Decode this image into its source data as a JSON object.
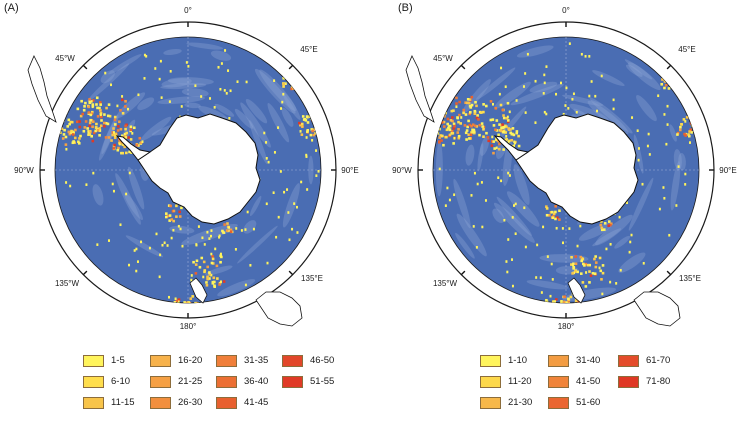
{
  "panels": [
    {
      "label": "(A)",
      "ticks": [
        "0°",
        "45°E",
        "90°E",
        "135°E",
        "180°",
        "135°W",
        "90°W",
        "45°W"
      ],
      "legend": [
        {
          "label": "1-5",
          "color": "#fff45c"
        },
        {
          "label": "6-10",
          "color": "#ffde4d"
        },
        {
          "label": "11-15",
          "color": "#f8c44a"
        },
        {
          "label": "16-20",
          "color": "#f7b24b"
        },
        {
          "label": "21-25",
          "color": "#f5a044"
        },
        {
          "label": "26-30",
          "color": "#f28f3d"
        },
        {
          "label": "31-35",
          "color": "#f07f3a"
        },
        {
          "label": "36-40",
          "color": "#ec6f33"
        },
        {
          "label": "41-45",
          "color": "#e8602e"
        },
        {
          "label": "46-50",
          "color": "#e2472a"
        },
        {
          "label": "51-55",
          "color": "#e03a26"
        }
      ]
    },
    {
      "label": "(B)",
      "ticks": [
        "0°",
        "45°E",
        "90°E",
        "135°E",
        "180°",
        "135°W",
        "90°W",
        "45°W"
      ],
      "legend": [
        {
          "label": "1-10",
          "color": "#fff45c"
        },
        {
          "label": "11-20",
          "color": "#fdd84b"
        },
        {
          "label": "21-30",
          "color": "#f7b84a"
        },
        {
          "label": "31-40",
          "color": "#f39c42"
        },
        {
          "label": "41-50",
          "color": "#f0843a"
        },
        {
          "label": "51-60",
          "color": "#ea6630"
        },
        {
          "label": "61-70",
          "color": "#e44c2a"
        },
        {
          "label": "71-80",
          "color": "#df3824"
        }
      ]
    }
  ],
  "map": {
    "ocean_color": "#4a6db3",
    "ocean_edge_color": "#3a5aa3",
    "land_color": "#ffffff",
    "hotspot_colors": [
      "#fff45c",
      "#ffde4d",
      "#f8c44a",
      "#f5a044",
      "#f07f3a",
      "#e8602e",
      "#e03a26"
    ]
  }
}
